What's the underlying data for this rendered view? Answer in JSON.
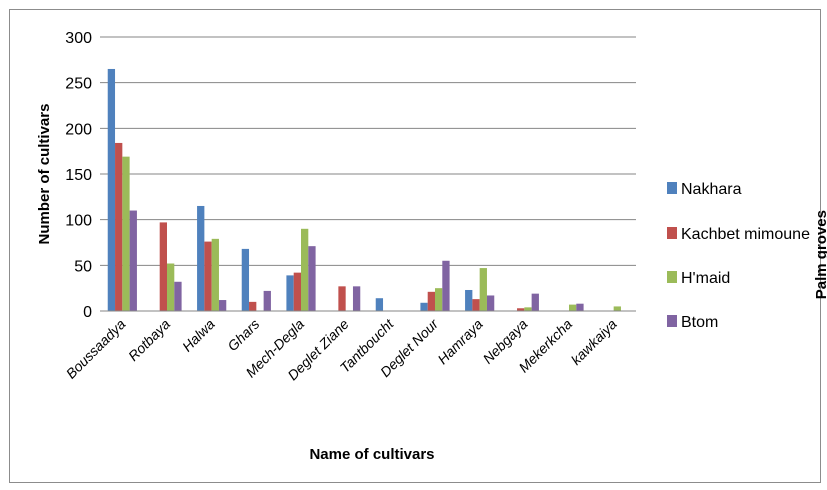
{
  "chart_data": {
    "type": "bar",
    "title": "",
    "xlabel": "Name of cultivars",
    "ylabel": "Number of cultivars",
    "side_label": "Palm groves",
    "ylim": [
      0,
      300
    ],
    "yticks": [
      0,
      50,
      100,
      150,
      200,
      250,
      300
    ],
    "grid": true,
    "legend_position": "right",
    "categories": [
      "Boussaadya",
      "Rotbaya",
      "Halwa",
      "Ghars",
      "Mech-Degla",
      "Deglet Ziane",
      "Tantboucht",
      "Deglet Nour",
      "Hamraya",
      "Nebgaya",
      "Mekerkcha",
      "kawkaiya"
    ],
    "series": [
      {
        "name": "Nakhara",
        "color": "#4f81bd",
        "values": [
          265,
          0,
          115,
          68,
          39,
          0,
          14,
          9,
          23,
          0,
          0,
          0
        ]
      },
      {
        "name": "Kachbet mimoune",
        "color": "#c0504d",
        "values": [
          184,
          97,
          76,
          10,
          42,
          27,
          0,
          21,
          13,
          3,
          0,
          0
        ]
      },
      {
        "name": "H'maid",
        "color": "#9bbb59",
        "values": [
          169,
          52,
          79,
          0,
          90,
          0,
          0,
          25,
          47,
          4,
          7,
          5
        ]
      },
      {
        "name": "Btom",
        "color": "#8064a2",
        "values": [
          110,
          32,
          12,
          22,
          71,
          27,
          0,
          55,
          17,
          19,
          8,
          0
        ]
      }
    ]
  }
}
